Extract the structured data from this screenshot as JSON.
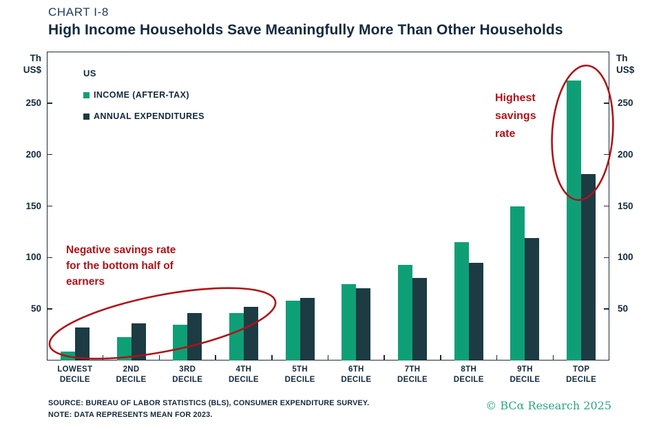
{
  "header": {
    "kicker": "CHART I-8",
    "title": "High Income Households Save Meaningfully More Than Other Households"
  },
  "axis": {
    "unit_label": "Th\nUS$",
    "y_ticks": [
      250,
      200,
      150,
      100,
      50
    ]
  },
  "legend": {
    "region": "US",
    "items": [
      {
        "label": "INCOME (AFTER-TAX)",
        "color": "#0f9f77"
      },
      {
        "label": "ANNUAL EXPENDITURES",
        "color": "#1c3b43"
      }
    ]
  },
  "chart_data": {
    "type": "bar",
    "title": "High Income Households Save Meaningfully More Than Other Households",
    "xlabel": "",
    "ylabel": "Th US$",
    "ylim": [
      0,
      300
    ],
    "grid": false,
    "legend_position": "top-left",
    "categories": [
      "LOWEST DECILE",
      "2ND DECILE",
      "3RD DECILE",
      "4TH DECILE",
      "5TH DECILE",
      "6TH DECILE",
      "7TH DECILE",
      "8TH DECILE",
      "9TH DECILE",
      "TOP DECILE"
    ],
    "category_lines": [
      [
        "LOWEST",
        "DECILE"
      ],
      [
        "2ND",
        "DECILE"
      ],
      [
        "3RD",
        "DECILE"
      ],
      [
        "4TH",
        "DECILE"
      ],
      [
        "5TH",
        "DECILE"
      ],
      [
        "6TH",
        "DECILE"
      ],
      [
        "7TH",
        "DECILE"
      ],
      [
        "8TH",
        "DECILE"
      ],
      [
        "9TH",
        "DECILE"
      ],
      [
        "TOP",
        "DECILE"
      ]
    ],
    "series": [
      {
        "name": "INCOME (AFTER-TAX)",
        "color": "#0f9f77",
        "values": [
          9,
          23,
          35,
          46,
          58,
          74,
          93,
          115,
          150,
          272
        ]
      },
      {
        "name": "ANNUAL EXPENDITURES",
        "color": "#1c3b43",
        "values": [
          32,
          36,
          46,
          52,
          61,
          70,
          80,
          95,
          119,
          181
        ]
      }
    ]
  },
  "annotations": {
    "color": "#b01218",
    "negative": {
      "lines": [
        "Negative savings rate",
        "for the bottom half of",
        "earners"
      ]
    },
    "highest": {
      "lines": [
        "Highest",
        "savings",
        "rate"
      ]
    }
  },
  "footer": {
    "source": "SOURCE: BUREAU OF LABOR STATISTICS (BLS), CONSUMER EXPENDITURE SURVEY.",
    "note": "NOTE: DATA REPRESENTS MEAN FOR 2023.",
    "copyright": "© BCα Research 2025",
    "copyright_color": "#2ba583"
  }
}
